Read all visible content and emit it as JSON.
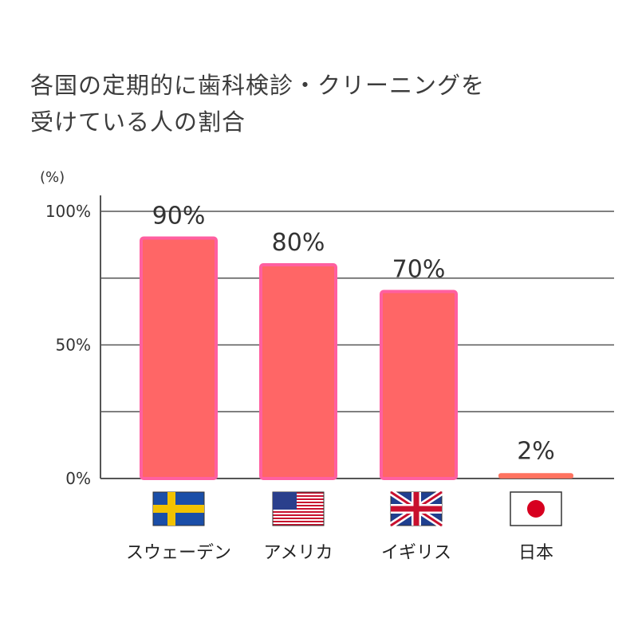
{
  "chart_data": {
    "type": "bar",
    "title_lines": [
      "各国の定期的に歯科検診・クリーニングを",
      "受けている人の割合"
    ],
    "unit_label": "(%)",
    "categories": [
      "スウェーデン",
      "アメリカ",
      "イギリス",
      "日本"
    ],
    "values": [
      90,
      80,
      70,
      2
    ],
    "value_labels": [
      "90%",
      "80%",
      "70%",
      "2%"
    ],
    "y_ticks": [
      {
        "value": 100,
        "label": "100%"
      },
      {
        "value": 50,
        "label": "50%"
      },
      {
        "value": 0,
        "label": "0%"
      }
    ],
    "ylim": [
      0,
      100
    ],
    "gridlines": [
      0,
      25,
      50,
      75,
      100
    ],
    "flags": [
      "sweden-flag-icon",
      "usa-flag-icon",
      "uk-flag-icon",
      "japan-flag-icon"
    ],
    "colors": {
      "bar_fill": "#ff6666",
      "bar_stroke": "#ff5fa0",
      "japan_bar_fill": "#ff7360",
      "value_label": "#333333",
      "japan_value_label": "#e0507a",
      "grid": "#555555"
    }
  }
}
